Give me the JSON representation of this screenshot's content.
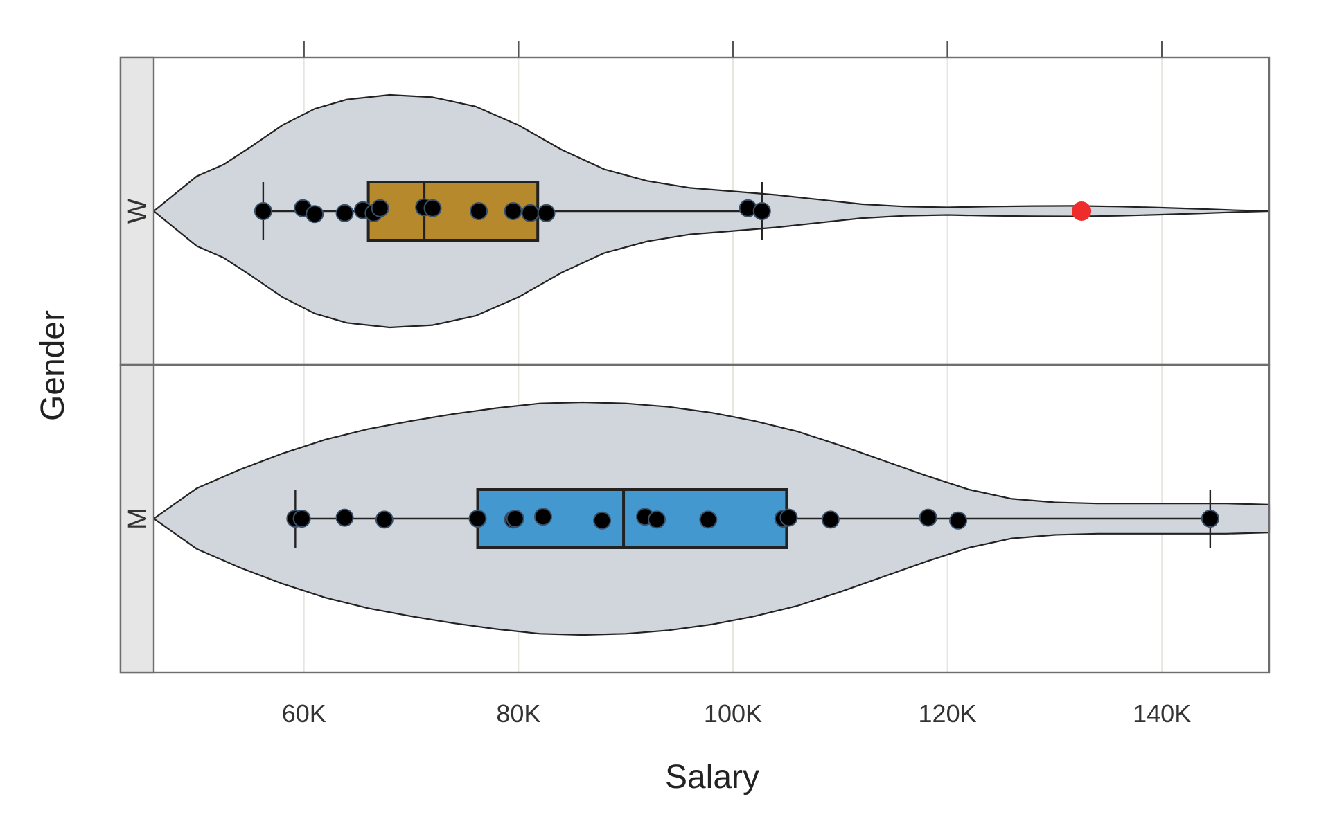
{
  "chart_data": {
    "type": "violin",
    "xlabel": "Salary",
    "ylabel": "Gender",
    "xlim": [
      46000,
      150000
    ],
    "x_ticks": [
      {
        "value": 60000,
        "label": "60K"
      },
      {
        "value": 80000,
        "label": "80K"
      },
      {
        "value": 100000,
        "label": "100K"
      },
      {
        "value": 120000,
        "label": "120K"
      },
      {
        "value": 140000,
        "label": "140K"
      }
    ],
    "grid": "vertical",
    "colors": {
      "violin_fill": "#d1d6dd",
      "W_box": "#b5892c",
      "M_box": "#4398d0",
      "outlier": "#ee2c2c",
      "points": "#000000",
      "strip": "#e6e6e6"
    },
    "groups": [
      {
        "label": "W",
        "box_color": "#b5892c",
        "box": {
          "whisker_low": 56200,
          "q1": 66000,
          "median": 71200,
          "q3": 81800,
          "whisker_high": 102700
        },
        "outliers": [
          132500
        ],
        "points": [
          {
            "x": 56200,
            "y": 0.0
          },
          {
            "x": 59900,
            "y": -0.3
          },
          {
            "x": 61000,
            "y": 0.3
          },
          {
            "x": 63800,
            "y": 0.2
          },
          {
            "x": 65500,
            "y": -0.1
          },
          {
            "x": 66500,
            "y": 0.2
          },
          {
            "x": 67100,
            "y": -0.3
          },
          {
            "x": 71200,
            "y": -0.4
          },
          {
            "x": 72000,
            "y": -0.3
          },
          {
            "x": 76300,
            "y": 0.0
          },
          {
            "x": 79500,
            "y": 0.0
          },
          {
            "x": 81100,
            "y": 0.2
          },
          {
            "x": 82600,
            "y": 0.2
          },
          {
            "x": 101400,
            "y": -0.3
          },
          {
            "x": 102700,
            "y": 0.0
          }
        ],
        "density": [
          {
            "x": 46000,
            "w": 0.0
          },
          {
            "x": 50000,
            "w": 0.3
          },
          {
            "x": 52500,
            "w": 0.4
          },
          {
            "x": 55000,
            "w": 0.55
          },
          {
            "x": 58000,
            "w": 0.74
          },
          {
            "x": 61000,
            "w": 0.88
          },
          {
            "x": 64000,
            "w": 0.96
          },
          {
            "x": 68000,
            "w": 1.0
          },
          {
            "x": 72000,
            "w": 0.98
          },
          {
            "x": 76000,
            "w": 0.9
          },
          {
            "x": 80000,
            "w": 0.74
          },
          {
            "x": 84000,
            "w": 0.53
          },
          {
            "x": 88000,
            "w": 0.36
          },
          {
            "x": 92000,
            "w": 0.26
          },
          {
            "x": 96000,
            "w": 0.2
          },
          {
            "x": 100000,
            "w": 0.17
          },
          {
            "x": 104000,
            "w": 0.14
          },
          {
            "x": 108000,
            "w": 0.1
          },
          {
            "x": 112000,
            "w": 0.06
          },
          {
            "x": 116000,
            "w": 0.04
          },
          {
            "x": 120000,
            "w": 0.033
          },
          {
            "x": 124000,
            "w": 0.04
          },
          {
            "x": 128000,
            "w": 0.044
          },
          {
            "x": 132000,
            "w": 0.045
          },
          {
            "x": 136000,
            "w": 0.04
          },
          {
            "x": 140000,
            "w": 0.03
          },
          {
            "x": 144000,
            "w": 0.018
          },
          {
            "x": 147000,
            "w": 0.008
          },
          {
            "x": 150000,
            "w": 0.0
          }
        ]
      },
      {
        "label": "M",
        "box_color": "#4398d0",
        "box": {
          "whisker_low": 59200,
          "q1": 76200,
          "median": 89800,
          "q3": 105000,
          "whisker_high": 144500
        },
        "outliers": [],
        "points": [
          {
            "x": 59200,
            "y": 0.0
          },
          {
            "x": 59800,
            "y": 0.0
          },
          {
            "x": 63800,
            "y": -0.1
          },
          {
            "x": 67500,
            "y": 0.1
          },
          {
            "x": 76200,
            "y": 0.0
          },
          {
            "x": 79500,
            "y": 0.1
          },
          {
            "x": 79700,
            "y": 0.0
          },
          {
            "x": 82300,
            "y": -0.2
          },
          {
            "x": 87800,
            "y": 0.2
          },
          {
            "x": 91800,
            "y": -0.2
          },
          {
            "x": 92900,
            "y": 0.1
          },
          {
            "x": 97700,
            "y": 0.1
          },
          {
            "x": 104700,
            "y": 0.0
          },
          {
            "x": 105200,
            "y": -0.1
          },
          {
            "x": 109100,
            "y": 0.1
          },
          {
            "x": 118200,
            "y": -0.1
          },
          {
            "x": 121000,
            "y": 0.2
          },
          {
            "x": 144500,
            "y": 0.0
          }
        ],
        "density": [
          {
            "x": 46000,
            "w": 0.0
          },
          {
            "x": 50000,
            "w": 0.26
          },
          {
            "x": 54000,
            "w": 0.42
          },
          {
            "x": 58000,
            "w": 0.56
          },
          {
            "x": 62000,
            "w": 0.68
          },
          {
            "x": 66000,
            "w": 0.77
          },
          {
            "x": 70000,
            "w": 0.84
          },
          {
            "x": 74000,
            "w": 0.9
          },
          {
            "x": 78000,
            "w": 0.95
          },
          {
            "x": 82000,
            "w": 0.99
          },
          {
            "x": 86000,
            "w": 1.0
          },
          {
            "x": 90000,
            "w": 0.99
          },
          {
            "x": 94000,
            "w": 0.96
          },
          {
            "x": 98000,
            "w": 0.91
          },
          {
            "x": 102000,
            "w": 0.84
          },
          {
            "x": 106000,
            "w": 0.75
          },
          {
            "x": 110000,
            "w": 0.63
          },
          {
            "x": 114000,
            "w": 0.5
          },
          {
            "x": 118000,
            "w": 0.37
          },
          {
            "x": 122000,
            "w": 0.25
          },
          {
            "x": 126000,
            "w": 0.17
          },
          {
            "x": 130000,
            "w": 0.14
          },
          {
            "x": 134000,
            "w": 0.13
          },
          {
            "x": 138000,
            "w": 0.13
          },
          {
            "x": 142000,
            "w": 0.13
          },
          {
            "x": 146000,
            "w": 0.13
          },
          {
            "x": 150000,
            "w": 0.12
          }
        ]
      }
    ]
  }
}
